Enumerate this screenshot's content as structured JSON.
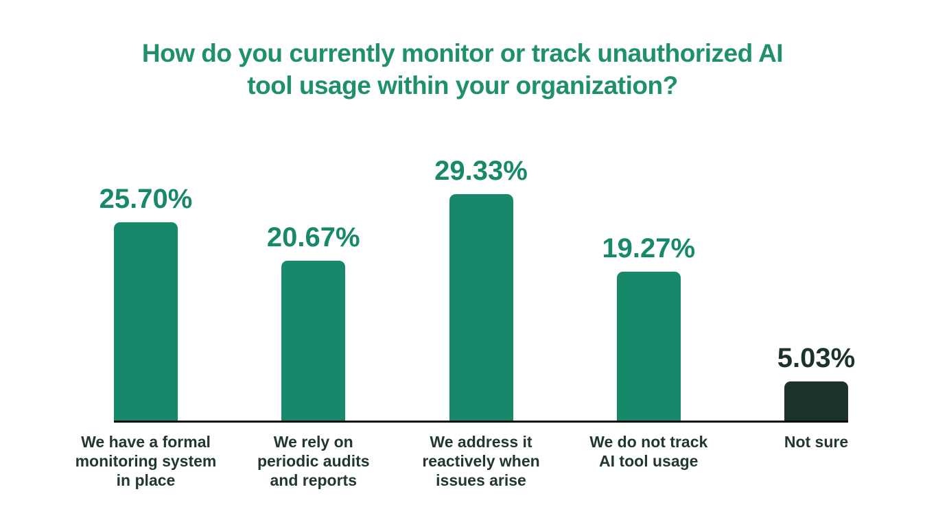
{
  "title": {
    "text": "How do you currently monitor or track unauthorized AI tool usage within your organization?",
    "lines": [
      "How do you currently monitor or track unauthorized AI",
      "tool usage within your organization?"
    ],
    "color": "#1f9069"
  },
  "chart_data": {
    "type": "bar",
    "title": "How do you currently monitor or track unauthorized AI tool usage within your organization?",
    "categories": [
      "We have a formal monitoring system in place",
      "We rely on periodic audits and reports",
      "We address it reactively when issues arise",
      "We do not track AI tool usage",
      "Not sure"
    ],
    "category_lines": [
      [
        "We have a formal",
        "monitoring system",
        "in place"
      ],
      [
        "We rely on",
        "periodic audits",
        "and reports"
      ],
      [
        "We address it",
        "reactively when",
        "issues arise"
      ],
      [
        "We do not track",
        "AI tool usage"
      ],
      [
        "Not sure"
      ]
    ],
    "values": [
      25.7,
      20.67,
      29.33,
      19.27,
      5.03
    ],
    "value_labels": [
      "25.70%",
      "20.67%",
      "29.33%",
      "19.27%",
      "5.03%"
    ],
    "bar_colors": [
      "#17896a",
      "#17896a",
      "#17896a",
      "#17896a",
      "#1c332d"
    ],
    "value_label_colors": [
      "#17896a",
      "#17896a",
      "#17896a",
      "#17896a",
      "#1c332d"
    ],
    "category_label_color": "#22372e",
    "axis_color": "#0b0b0b",
    "xlabel": "",
    "ylabel": "",
    "ylim": [
      0,
      30
    ],
    "grid": false,
    "legend": false
  },
  "layout_hints": {
    "orientation": "vertical",
    "value_labels_position": "above-bars",
    "axis_shown": "x-only"
  }
}
